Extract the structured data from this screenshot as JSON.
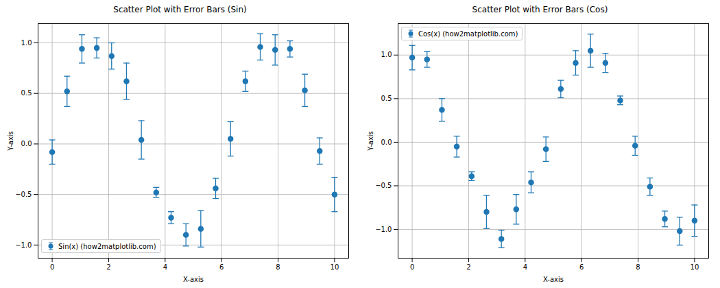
{
  "chart_data": [
    {
      "type": "scatter",
      "title": "Scatter Plot with Error Bars (Sin)",
      "x_label": "X-axis",
      "y_label": "Y-axis",
      "x": [
        0,
        0.526,
        1.053,
        1.579,
        2.105,
        2.632,
        3.158,
        3.684,
        4.211,
        4.737,
        5.263,
        5.789,
        6.316,
        6.842,
        7.368,
        7.895,
        8.421,
        8.947,
        9.474,
        10
      ],
      "series": [
        {
          "name": "Sin(x) (how2matplotlib.com)",
          "color": "#1f77b4",
          "marker": "circle",
          "values": [
            -0.08,
            0.52,
            0.94,
            0.95,
            0.87,
            0.62,
            0.04,
            -0.48,
            -0.73,
            -0.9,
            -0.84,
            -0.44,
            0.05,
            0.62,
            0.96,
            0.93,
            0.94,
            0.53,
            -0.07,
            -0.5
          ],
          "errors": [
            0.12,
            0.15,
            0.14,
            0.1,
            0.13,
            0.18,
            0.19,
            0.05,
            0.06,
            0.11,
            0.18,
            0.1,
            0.17,
            0.1,
            0.13,
            0.15,
            0.08,
            0.16,
            0.13,
            0.17
          ]
        }
      ],
      "xlim": [
        -0.5,
        10.5
      ],
      "ylim": [
        -1.13,
        1.19
      ],
      "xticks": [
        0,
        2,
        4,
        6,
        8,
        10
      ],
      "yticks": [
        {
          "value": -1,
          "label": "−1.0"
        },
        {
          "value": -0.5,
          "label": "−0.5"
        },
        {
          "value": 0,
          "label": "0.0"
        },
        {
          "value": 0.5,
          "label": "0.5"
        },
        {
          "value": 1,
          "label": "1.0"
        }
      ],
      "grid": true,
      "legend": "lower left"
    },
    {
      "type": "scatter",
      "title": "Scatter Plot with Error Bars (Cos)",
      "x_label": "X-axis",
      "y_label": "Y-axis",
      "x": [
        0,
        0.526,
        1.053,
        1.579,
        2.105,
        2.632,
        3.158,
        3.684,
        4.211,
        4.737,
        5.263,
        5.789,
        6.316,
        6.842,
        7.368,
        7.895,
        8.421,
        8.947,
        9.474,
        10
      ],
      "series": [
        {
          "name": "Cos(x) (how2matplotlib.com)",
          "color": "#1f77b4",
          "marker": "circle",
          "values": [
            0.97,
            0.95,
            0.37,
            -0.05,
            -0.39,
            -0.8,
            -1.11,
            -0.77,
            -0.46,
            -0.08,
            0.61,
            0.91,
            1.05,
            0.91,
            0.48,
            -0.04,
            -0.51,
            -0.88,
            -1.02,
            -0.9
          ],
          "errors": [
            0.14,
            0.09,
            0.13,
            0.12,
            0.05,
            0.19,
            0.1,
            0.17,
            0.12,
            0.14,
            0.1,
            0.14,
            0.19,
            0.11,
            0.05,
            0.11,
            0.1,
            0.09,
            0.16,
            0.18
          ]
        }
      ],
      "xlim": [
        -0.5,
        10.5
      ],
      "ylim": [
        -1.33,
        1.36
      ],
      "xticks": [
        0,
        2,
        4,
        6,
        8,
        10
      ],
      "yticks": [
        {
          "value": -1,
          "label": "−1.0"
        },
        {
          "value": -0.5,
          "label": "−0.5"
        },
        {
          "value": 0,
          "label": "0.0"
        },
        {
          "value": 0.5,
          "label": "0.5"
        },
        {
          "value": 1,
          "label": "1.0"
        }
      ],
      "grid": true,
      "legend": "upper left"
    }
  ]
}
